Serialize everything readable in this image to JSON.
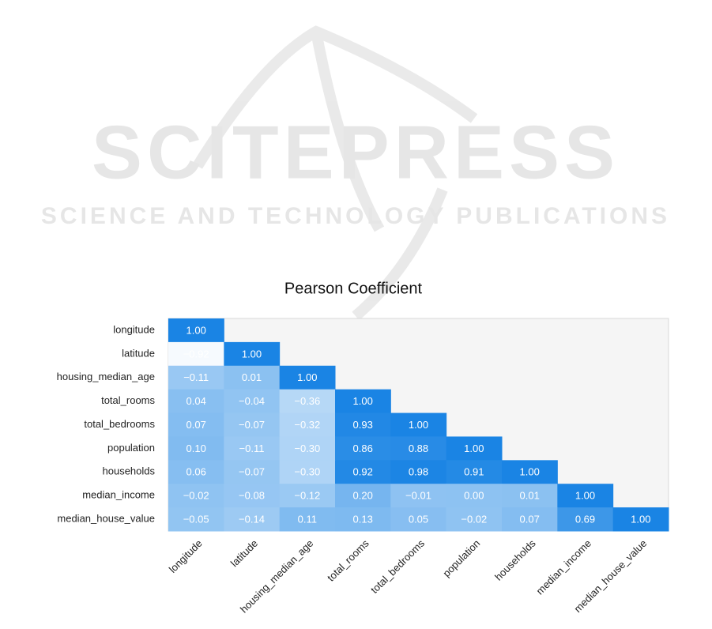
{
  "watermark": {
    "title": "SCITEPRESS",
    "subtitle": "SCIENCE AND TECHNOLOGY PUBLICATIONS"
  },
  "chart_data": {
    "type": "heatmap",
    "title": "Pearson Coefficient",
    "categories": [
      "longitude",
      "latitude",
      "housing_median_age",
      "total_rooms",
      "total_bedrooms",
      "population",
      "households",
      "median_income",
      "median_house_value"
    ],
    "values": [
      [
        1.0
      ],
      [
        -0.92,
        1.0
      ],
      [
        -0.11,
        0.01,
        1.0
      ],
      [
        0.04,
        -0.04,
        -0.36,
        1.0
      ],
      [
        0.07,
        -0.07,
        -0.32,
        0.93,
        1.0
      ],
      [
        0.1,
        -0.11,
        -0.3,
        0.86,
        0.88,
        1.0
      ],
      [
        0.06,
        -0.07,
        -0.3,
        0.92,
        0.98,
        0.91,
        1.0
      ],
      [
        -0.02,
        -0.08,
        -0.12,
        0.2,
        -0.01,
        0.0,
        0.01,
        1.0
      ],
      [
        -0.05,
        -0.14,
        0.11,
        0.13,
        0.05,
        -0.02,
        0.07,
        0.69,
        1.0
      ]
    ],
    "value_labels": [
      [
        "1.00"
      ],
      [
        "−0.92",
        "1.00"
      ],
      [
        "−0.11",
        "0.01",
        "1.00"
      ],
      [
        "0.04",
        "−0.04",
        "−0.36",
        "1.00"
      ],
      [
        "0.07",
        "−0.07",
        "−0.32",
        "0.93",
        "1.00"
      ],
      [
        "0.10",
        "−0.11",
        "−0.30",
        "0.86",
        "0.88",
        "1.00"
      ],
      [
        "0.06",
        "−0.07",
        "−0.30",
        "0.92",
        "0.98",
        "0.91",
        "1.00"
      ],
      [
        "−0.02",
        "−0.08",
        "−0.12",
        "0.20",
        "−0.01",
        "0.00",
        "0.01",
        "1.00"
      ],
      [
        "−0.05",
        "−0.14",
        "0.11",
        "0.13",
        "0.05",
        "−0.02",
        "0.07",
        "0.69",
        "1.00"
      ]
    ],
    "zlim": [
      -1,
      1
    ],
    "colors": [
      "#ffffff",
      "#1a84e4"
    ]
  }
}
